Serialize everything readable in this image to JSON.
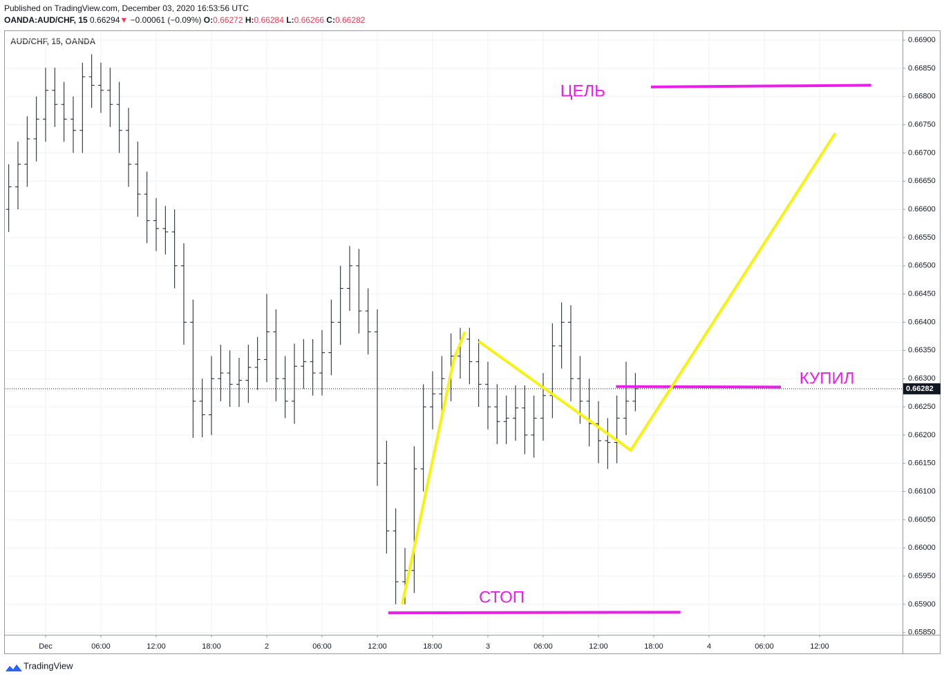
{
  "header": {
    "published": "Published on TradingView.com, December 03, 2020 16:53:56 UTC",
    "symbol": "OANDA:AUD/CHF, 15",
    "price": "0.66294",
    "arrow": "▼",
    "change": "−0.00061 (−0.09%)",
    "o_label": "O:",
    "o": "0.66272",
    "h_label": "H:",
    "h": "0.66284",
    "l_label": "L:",
    "l": "0.66266",
    "c_label": "C:",
    "c": "0.66282"
  },
  "footer": {
    "brand": "TradingView"
  },
  "chart_data": {
    "type": "ohlc",
    "legend": "AUD/CHF, 15, OANDA",
    "color": "#131722",
    "x": [
      -4,
      -3,
      -2,
      -1,
      0,
      1,
      2,
      3,
      4,
      5,
      6,
      7,
      8,
      9,
      10,
      11,
      12,
      13,
      14,
      15,
      16,
      17,
      18,
      19,
      20,
      21,
      22,
      23,
      24,
      25,
      26,
      27,
      28,
      29,
      30,
      31,
      32,
      33,
      34,
      35,
      36,
      37,
      38,
      39,
      40,
      41,
      42,
      43,
      44,
      45,
      46,
      47,
      48,
      49,
      50,
      51,
      52,
      53,
      54,
      55,
      56,
      57,
      58,
      59,
      60,
      61,
      62,
      63,
      64
    ],
    "open": [
      0.666,
      0.6664,
      0.6668,
      0.66725,
      0.6676,
      0.66811,
      0.66786,
      0.6676,
      0.6674,
      0.66835,
      0.6682,
      0.66811,
      0.66786,
      0.6674,
      0.6668,
      0.66627,
      0.6658,
      0.66566,
      0.6656,
      0.665,
      0.664,
      0.6626,
      0.66236,
      0.663,
      0.6631,
      0.6629,
      0.66297,
      0.6632,
      0.66334,
      0.66383,
      0.663,
      0.6626,
      0.66322,
      0.6633,
      0.6631,
      0.66346,
      0.664,
      0.6646,
      0.665,
      0.6642,
      0.66383,
      0.6615,
      0.6603,
      0.6594,
      0.6596,
      0.6614,
      0.6625,
      0.66273,
      0.663,
      0.6634,
      0.6637,
      0.6633,
      0.6629,
      0.6625,
      0.66224,
      0.6623,
      0.66248,
      0.662,
      0.6623,
      0.6627,
      0.66358,
      0.664,
      0.663,
      0.6626,
      0.6622,
      0.6619,
      0.66187,
      0.6623,
      0.6626
    ],
    "high": [
      0.6668,
      0.6672,
      0.66765,
      0.668,
      0.66851,
      0.66851,
      0.66826,
      0.668,
      0.6686,
      0.66875,
      0.6686,
      0.66851,
      0.66826,
      0.6678,
      0.6672,
      0.66667,
      0.6662,
      0.66606,
      0.666,
      0.6654,
      0.6644,
      0.663,
      0.6634,
      0.6636,
      0.6635,
      0.66337,
      0.6636,
      0.66374,
      0.6645,
      0.66423,
      0.6634,
      0.66362,
      0.6637,
      0.6637,
      0.66386,
      0.6644,
      0.665,
      0.66535,
      0.6653,
      0.6646,
      0.66423,
      0.6619,
      0.6607,
      0.66,
      0.6618,
      0.6629,
      0.66313,
      0.6634,
      0.6638,
      0.6639,
      0.6639,
      0.6637,
      0.6633,
      0.6629,
      0.6627,
      0.66288,
      0.66288,
      0.6627,
      0.6631,
      0.66398,
      0.66435,
      0.6643,
      0.6634,
      0.663,
      0.6626,
      0.6623,
      0.6627,
      0.6633,
      0.6631
    ],
    "low": [
      0.6656,
      0.666,
      0.6664,
      0.66685,
      0.6672,
      0.66746,
      0.6672,
      0.667,
      0.667,
      0.6678,
      0.66771,
      0.66746,
      0.667,
      0.6664,
      0.66587,
      0.6654,
      0.66526,
      0.6652,
      0.6646,
      0.6636,
      0.66195,
      0.66196,
      0.662,
      0.6626,
      0.6625,
      0.6625,
      0.66257,
      0.6628,
      0.66294,
      0.6626,
      0.6623,
      0.6622,
      0.66282,
      0.6627,
      0.6627,
      0.66306,
      0.6636,
      0.6642,
      0.6638,
      0.66343,
      0.6611,
      0.6599,
      0.659,
      0.659,
      0.6592,
      0.661,
      0.6621,
      0.66233,
      0.6626,
      0.663,
      0.6629,
      0.6625,
      0.6621,
      0.66184,
      0.66184,
      0.6619,
      0.66166,
      0.6616,
      0.6619,
      0.6623,
      0.66318,
      0.6626,
      0.6622,
      0.6618,
      0.6615,
      0.6614,
      0.6615,
      0.662,
      0.66242
    ],
    "close": [
      0.6664,
      0.6668,
      0.66725,
      0.6676,
      0.66811,
      0.66786,
      0.6676,
      0.6674,
      0.66835,
      0.6682,
      0.66811,
      0.66786,
      0.6674,
      0.6668,
      0.66627,
      0.6658,
      0.66566,
      0.6656,
      0.665,
      0.664,
      0.6626,
      0.66236,
      0.663,
      0.6631,
      0.6629,
      0.66297,
      0.6632,
      0.66334,
      0.66383,
      0.663,
      0.6626,
      0.66322,
      0.6633,
      0.6631,
      0.66346,
      0.664,
      0.6646,
      0.665,
      0.6642,
      0.66383,
      0.6615,
      0.6603,
      0.6594,
      0.6596,
      0.6614,
      0.6625,
      0.66273,
      0.663,
      0.6634,
      0.6637,
      0.6633,
      0.6629,
      0.6625,
      0.66224,
      0.6623,
      0.66248,
      0.662,
      0.6623,
      0.6627,
      0.66358,
      0.664,
      0.663,
      0.6626,
      0.6622,
      0.6619,
      0.66187,
      0.6623,
      0.6626,
      0.66282
    ],
    "last_price": {
      "value": 0.66282,
      "label": "0.66282"
    },
    "xlim": [
      -4.35,
      93
    ],
    "ylim": [
      0.65846,
      0.66916
    ],
    "xticks": [
      {
        "value": 0,
        "label": "Dec"
      },
      {
        "value": 6,
        "label": "06:00"
      },
      {
        "value": 12,
        "label": "12:00"
      },
      {
        "value": 18,
        "label": "18:00"
      },
      {
        "value": 24,
        "label": "2"
      },
      {
        "value": 30,
        "label": "06:00"
      },
      {
        "value": 36,
        "label": "12:00"
      },
      {
        "value": 42,
        "label": "18:00"
      },
      {
        "value": 48,
        "label": "3"
      },
      {
        "value": 54,
        "label": "06:00"
      },
      {
        "value": 60,
        "label": "12:00"
      },
      {
        "value": 66,
        "label": "18:00"
      },
      {
        "value": 72,
        "label": "4"
      },
      {
        "value": 78,
        "label": "06:00"
      },
      {
        "value": 84,
        "label": "12:00"
      }
    ],
    "yticks": [
      {
        "value": 0.6585,
        "label": "0.65850"
      },
      {
        "value": 0.659,
        "label": "0.65900"
      },
      {
        "value": 0.6595,
        "label": "0.65950"
      },
      {
        "value": 0.66,
        "label": "0.66000"
      },
      {
        "value": 0.6605,
        "label": "0.66050"
      },
      {
        "value": 0.661,
        "label": "0.66100"
      },
      {
        "value": 0.6615,
        "label": "0.66150"
      },
      {
        "value": 0.662,
        "label": "0.66200"
      },
      {
        "value": 0.6625,
        "label": "0.66250"
      },
      {
        "value": 0.663,
        "label": "0.66300"
      },
      {
        "value": 0.6635,
        "label": "0.66350"
      },
      {
        "value": 0.664,
        "label": "0.66400"
      },
      {
        "value": 0.6645,
        "label": "0.66450"
      },
      {
        "value": 0.665,
        "label": "0.66500"
      },
      {
        "value": 0.6655,
        "label": "0.66550"
      },
      {
        "value": 0.666,
        "label": "0.66600"
      },
      {
        "value": 0.6665,
        "label": "0.66650"
      },
      {
        "value": 0.667,
        "label": "0.66700"
      },
      {
        "value": 0.6675,
        "label": "0.66750"
      },
      {
        "value": 0.668,
        "label": "0.66800"
      },
      {
        "value": 0.6685,
        "label": "0.66850"
      },
      {
        "value": 0.669,
        "label": "0.66900"
      }
    ],
    "grid": true,
    "drawings": [
      {
        "color": "#e91ee8",
        "x": [
          65.7,
          89.6
        ],
        "y": [
          0.66817,
          0.6682
        ]
      },
      {
        "color": "#e91ee8",
        "x": [
          61.9,
          79.8
        ],
        "y": [
          0.66286,
          0.66285
        ]
      },
      {
        "color": "#e91ee8",
        "x": [
          37.2,
          68.9
        ],
        "y": [
          0.65885,
          0.65886
        ]
      },
      {
        "color": "#f6f212",
        "x": [
          38.7,
          44.3,
          45.5
        ],
        "y": [
          0.659,
          0.66334,
          0.66383
        ]
      },
      {
        "color": "#f6f212",
        "x": [
          47,
          63.5,
          85.7
        ],
        "y": [
          0.66366,
          0.66173,
          0.66735
        ]
      }
    ],
    "annotations": [
      {
        "text": "ЦЕЛЬ",
        "color": "#e91ee8",
        "x": 58.3,
        "y": 0.66808
      },
      {
        "text": "КУПИЛ",
        "color": "#e91ee8",
        "x": 84.8,
        "y": 0.66299
      },
      {
        "text": "СТОП",
        "color": "#e91ee8",
        "x": 49.5,
        "y": 0.65911
      }
    ]
  }
}
